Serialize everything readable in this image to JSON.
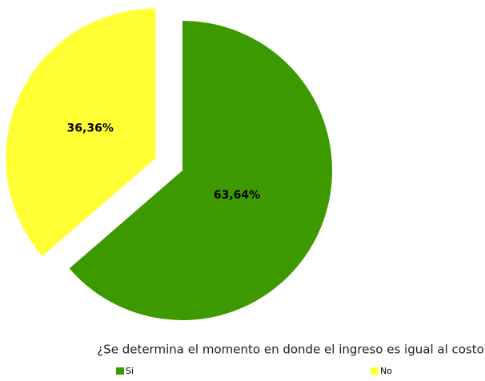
{
  "chart_data": {
    "type": "pie",
    "title": "¿Se determina el momento en donde el ingreso es igual al costo?",
    "categories": [
      "Si",
      "No"
    ],
    "values": [
      63.64,
      36.36
    ],
    "value_labels": [
      "63,64%",
      "36,36%"
    ],
    "colors": [
      "#3d9900",
      "#ffff33"
    ]
  }
}
